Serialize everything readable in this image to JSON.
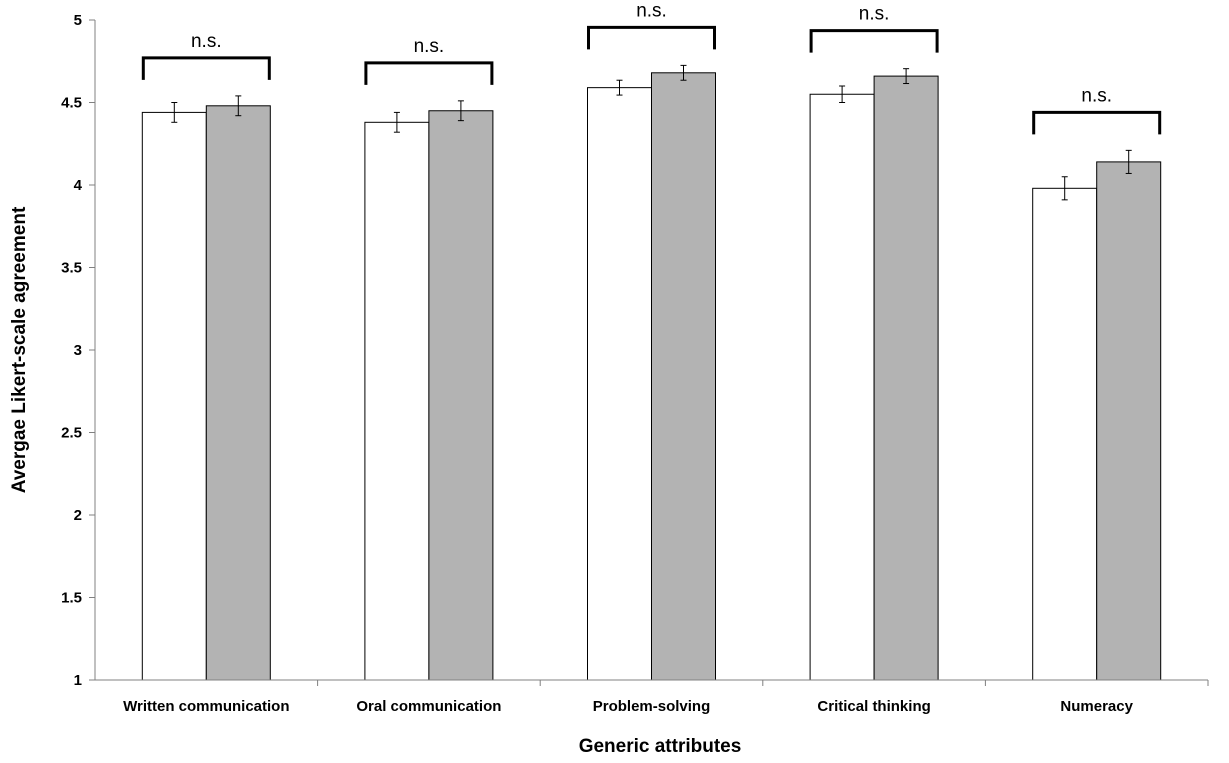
{
  "chart_data": {
    "type": "bar",
    "title": "",
    "xlabel": "Generic attributes",
    "ylabel": "Avergae Likert-scale agreement",
    "ylim": [
      1,
      5
    ],
    "yticks": [
      "1",
      "1.5",
      "2",
      "2.5",
      "3",
      "3.5",
      "4",
      "4.5",
      "5"
    ],
    "grid": false,
    "legend": "none",
    "categories": [
      "Written communication",
      "Oral communication",
      "Problem-solving",
      "Critical thinking",
      "Numeracy"
    ],
    "series": [
      {
        "values": [
          4.44,
          4.38,
          4.59,
          4.55,
          3.98
        ],
        "errors": [
          0.06,
          0.06,
          0.045,
          0.05,
          0.07
        ],
        "color": "#ffffff"
      },
      {
        "values": [
          4.48,
          4.45,
          4.68,
          4.66,
          4.14
        ],
        "errors": [
          0.06,
          0.06,
          0.045,
          0.045,
          0.07
        ],
        "color": "#b3b3b3"
      }
    ],
    "annotations": [
      "n.s.",
      "n.s.",
      "n.s.",
      "n.s.",
      "n.s."
    ]
  }
}
